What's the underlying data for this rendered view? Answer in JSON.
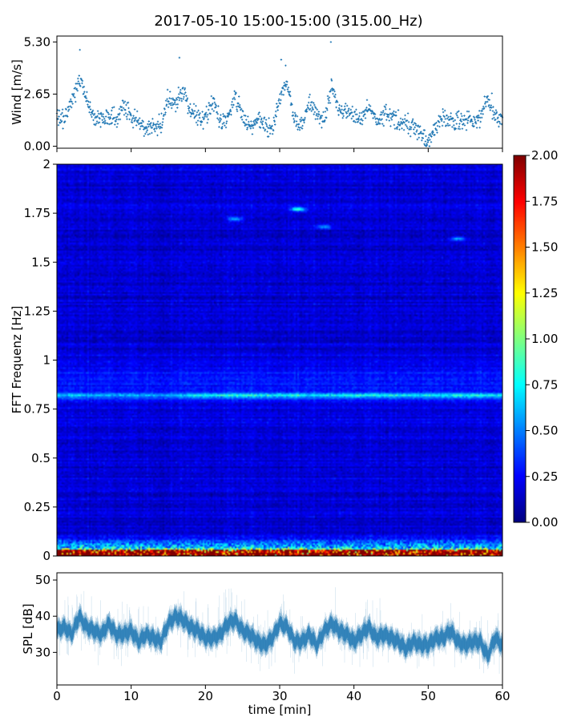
{
  "title": "2017-05-10 15:00-15:00 (315.00_Hz)",
  "chart_data": [
    {
      "name": "wind",
      "type": "scatter",
      "ylabel": "Wind [m/s]",
      "ylim": [
        0,
        5.3
      ],
      "xlim": [
        0,
        60
      ],
      "yticks": [
        0.0,
        2.65,
        5.3
      ],
      "ytick_labels": [
        "0.00",
        "2.65",
        "5.30"
      ],
      "color": "#1f77b4",
      "anchors_x": [
        0,
        1,
        2,
        3,
        4,
        5,
        6,
        7,
        8,
        9,
        10,
        11,
        12,
        13,
        14,
        15,
        16,
        17,
        18,
        19,
        20,
        21,
        22,
        23,
        24,
        25,
        26,
        27,
        28,
        29,
        30,
        31,
        32,
        33,
        34,
        35,
        36,
        37,
        38,
        39,
        40,
        41,
        42,
        43,
        44,
        45,
        46,
        47,
        48,
        49,
        50,
        51,
        52,
        53,
        54,
        55,
        56,
        57,
        58,
        59,
        60
      ],
      "anchors_y": [
        1.6,
        1.3,
        2.2,
        3.4,
        2.4,
        1.5,
        1.3,
        1.6,
        1.3,
        2.2,
        1.4,
        1.3,
        0.9,
        1.0,
        1.1,
        2.4,
        2.2,
        2.8,
        1.7,
        1.5,
        1.4,
        2.3,
        1.2,
        1.4,
        2.5,
        1.5,
        1.0,
        1.3,
        1.1,
        0.8,
        2.4,
        3.2,
        1.3,
        1.0,
        2.2,
        1.6,
        1.3,
        3.0,
        1.9,
        1.7,
        1.5,
        1.4,
        2.0,
        1.3,
        1.6,
        1.5,
        1.3,
        1.2,
        1.1,
        0.5,
        0.2,
        0.9,
        1.5,
        1.3,
        1.4,
        1.4,
        1.2,
        1.4,
        2.5,
        1.5,
        1.3
      ],
      "spikes": [
        [
          3.1,
          4.9
        ],
        [
          16.5,
          4.5
        ],
        [
          30.2,
          4.4
        ],
        [
          30.8,
          4.1
        ],
        [
          36.9,
          5.3
        ]
      ]
    },
    {
      "name": "spectrogram",
      "type": "heatmap",
      "ylabel": "FFT Frequenz [Hz]",
      "ylim": [
        0,
        2
      ],
      "xlim": [
        0,
        60
      ],
      "yticks": [
        0,
        0.25,
        0.5,
        0.75,
        1,
        1.25,
        1.5,
        1.75,
        2
      ],
      "ytick_labels": [
        "0",
        "0.25",
        "0.5",
        "0.75",
        "1",
        "1.25",
        "1.5",
        "1.75",
        "2"
      ],
      "colormap": "jet",
      "colorbar": {
        "vmin": 0,
        "vmax": 2,
        "ticks": [
          0,
          0.25,
          0.5,
          0.75,
          1.0,
          1.25,
          1.5,
          1.75,
          2.0
        ],
        "tick_labels": [
          "0.00",
          "0.25",
          "0.50",
          "0.75",
          "1.00",
          "1.25",
          "1.50",
          "1.75",
          "2.00"
        ]
      },
      "band_0_82_hz": [
        [
          0,
          0.55
        ],
        [
          3,
          0.6
        ],
        [
          5,
          0.45
        ],
        [
          10,
          0.5
        ],
        [
          16,
          0.45
        ],
        [
          18,
          0.65
        ],
        [
          22,
          0.75
        ],
        [
          25,
          0.8
        ],
        [
          28,
          0.7
        ],
        [
          30,
          0.75
        ],
        [
          32,
          0.85
        ],
        [
          34,
          0.6
        ],
        [
          38,
          0.65
        ],
        [
          41,
          0.75
        ],
        [
          44,
          0.7
        ],
        [
          48,
          0.65
        ],
        [
          51,
          0.7
        ],
        [
          54,
          0.75
        ],
        [
          57,
          0.7
        ],
        [
          60,
          0.6
        ]
      ],
      "bright_spots": [
        [
          32.5,
          1.77,
          0.7
        ],
        [
          24.0,
          1.72,
          0.5
        ],
        [
          54.0,
          1.62,
          0.45
        ],
        [
          36.0,
          1.68,
          0.4
        ]
      ],
      "low_freq_band": "0 - 0.1 Hz, values up to 2.0"
    },
    {
      "name": "spl",
      "type": "line",
      "ylabel": "SPL [dB]",
      "xlabel": "time [min]",
      "ylim": [
        21,
        52
      ],
      "xlim": [
        0,
        60
      ],
      "yticks": [
        30,
        40,
        50
      ],
      "ytick_labels": [
        "30",
        "40",
        "50"
      ],
      "xticks": [
        0,
        10,
        20,
        30,
        40,
        50,
        60
      ],
      "xtick_labels": [
        "0",
        "10",
        "20",
        "30",
        "40",
        "50",
        "60"
      ],
      "color": "#1f77b4",
      "anchors_x": [
        0,
        1,
        2,
        3,
        4,
        5,
        6,
        7,
        8,
        9,
        10,
        11,
        12,
        13,
        14,
        15,
        16,
        17,
        18,
        19,
        20,
        21,
        22,
        23,
        24,
        25,
        26,
        27,
        28,
        29,
        30,
        31,
        32,
        33,
        34,
        35,
        36,
        37,
        38,
        39,
        40,
        41,
        42,
        43,
        44,
        45,
        46,
        47,
        48,
        49,
        50,
        51,
        52,
        53,
        54,
        55,
        56,
        57,
        58,
        59,
        60
      ],
      "anchors_y": [
        36,
        37,
        35,
        40,
        37,
        36,
        35,
        38,
        35,
        35,
        36,
        33,
        35,
        34,
        33,
        38,
        40,
        39,
        37,
        36,
        34,
        34,
        35,
        38,
        39,
        36,
        35,
        33,
        32,
        34,
        38,
        37,
        33,
        33,
        35,
        32,
        36,
        38,
        36,
        35,
        33,
        35,
        37,
        34,
        35,
        34,
        33,
        31,
        33,
        32,
        32,
        34,
        34,
        36,
        33,
        32,
        33,
        33,
        29,
        34,
        32
      ],
      "spikes": [
        [
          30.5,
          46
        ],
        [
          37.5,
          48
        ],
        [
          15.5,
          43
        ],
        [
          43.5,
          45
        ]
      ],
      "band_halfwidth_db": 2.3
    }
  ]
}
